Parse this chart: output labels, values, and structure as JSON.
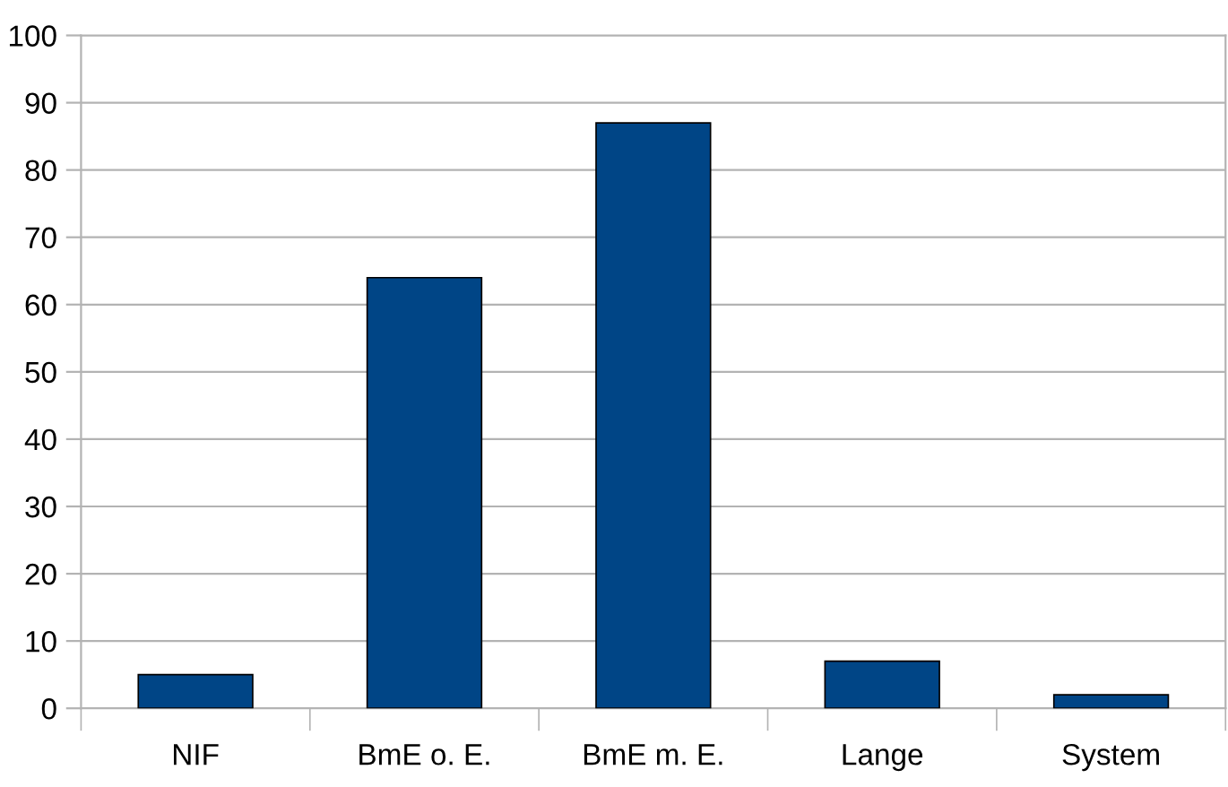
{
  "chart_data": {
    "type": "bar",
    "categories": [
      "NIF",
      "BmE o. E.",
      "BmE m. E.",
      "Lange",
      "System"
    ],
    "values": [
      5,
      64,
      87,
      7,
      2
    ],
    "color": "#004586",
    "ylim": [
      0,
      100
    ],
    "yticks": [
      0,
      10,
      20,
      30,
      40,
      50,
      60,
      70,
      80,
      90,
      100
    ],
    "grid": "y",
    "legend": false
  }
}
